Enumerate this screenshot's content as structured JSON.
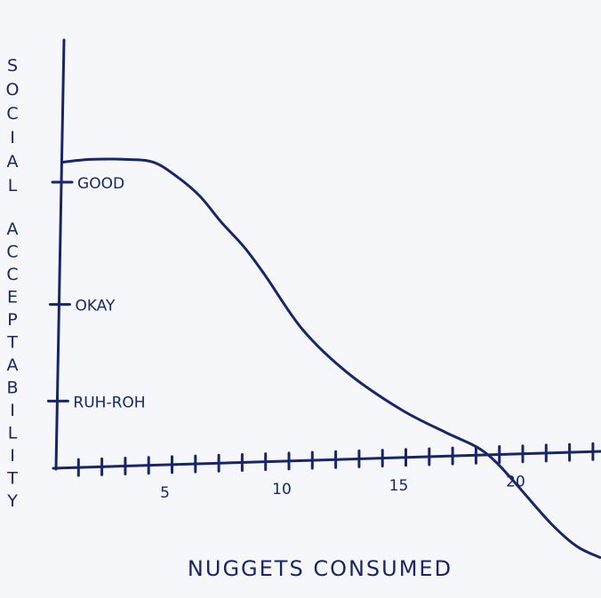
{
  "chart_data": {
    "type": "line",
    "title": "",
    "xlabel": "NUGGETS CONSUMED",
    "ylabel": "SOCIAL ACCEPTABILITY",
    "xlim": [
      0,
      23.3
    ],
    "x_ticks": [
      1,
      2,
      3,
      4,
      5,
      6,
      7,
      8,
      9,
      10,
      11,
      12,
      13,
      14,
      15,
      16,
      17,
      18,
      19,
      20,
      21,
      22,
      23
    ],
    "x_tick_labels": [
      {
        "value": 5,
        "label": "5"
      },
      {
        "value": 10,
        "label": "10"
      },
      {
        "value": 15,
        "label": "15"
      },
      {
        "value": 20,
        "label": "20"
      }
    ],
    "y_ticks": [
      {
        "value": 10,
        "label": "GOOD"
      },
      {
        "value": 5.7,
        "label": "OKAY"
      },
      {
        "value": 2.3,
        "label": "RUH-ROH"
      }
    ],
    "grid": false,
    "color": "#1b2466",
    "x": [
      0.3,
      1.5,
      3,
      4.2,
      5.2,
      6.2,
      7.1,
      8.1,
      9,
      10.6,
      12.5,
      14.8,
      16.7,
      18,
      18.8,
      19.7,
      21.2,
      22.3,
      23.3
    ],
    "y": [
      10.7,
      10.8,
      10.8,
      10.7,
      10.2,
      9.5,
      8.6,
      7.7,
      6.7,
      4.8,
      3.3,
      2.0,
      1.2,
      0.7,
      0.2,
      -0.6,
      -2.0,
      -2.8,
      -3.2
    ]
  }
}
